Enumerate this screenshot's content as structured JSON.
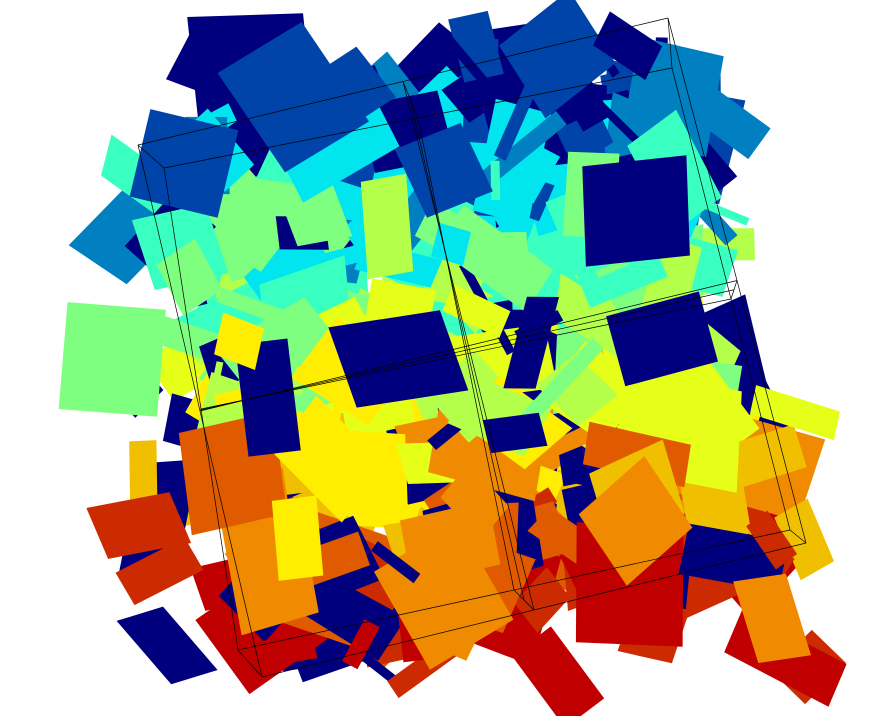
{
  "colors": {
    "background": "#ffffff",
    "frame": "#000000",
    "colormap": [
      "#00007f",
      "#0044aa",
      "#0080c0",
      "#00e5ee",
      "#39ffc0",
      "#7fff7f",
      "#b4ff4a",
      "#e5ff18",
      "#ffee00",
      "#f0c000",
      "#f08a00",
      "#e05a00",
      "#cc2a00",
      "#c00000"
    ]
  },
  "scene": {
    "type": "3d-fracture-network",
    "grid_divisions": [
      2,
      2,
      2
    ]
  }
}
